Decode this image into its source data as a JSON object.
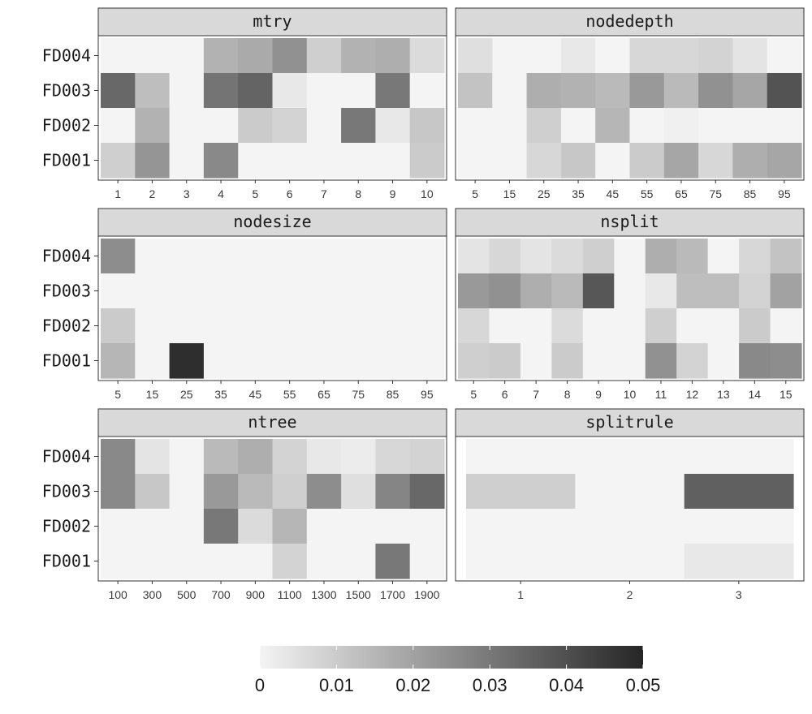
{
  "chart_data": {
    "type": "heatmap",
    "y_categories": [
      "FD001",
      "FD002",
      "FD003",
      "FD004"
    ],
    "fill_scale": {
      "min": 0,
      "max": 0.05,
      "low_color": "#f4f4f4",
      "high_color": "#262626"
    },
    "legend": {
      "ticks": [
        0,
        0.01,
        0.02,
        0.03,
        0.04,
        0.05
      ],
      "tick_labels": [
        "0",
        "0.01",
        "0.02",
        "0.03",
        "0.04",
        "0.05"
      ],
      "position": "bottom"
    },
    "panels": [
      {
        "title": "mtry",
        "x_categories": [
          "1",
          "2",
          "3",
          "4",
          "5",
          "6",
          "7",
          "8",
          "9",
          "10"
        ],
        "values": {
          "FD004": [
            0,
            0,
            0,
            0.016,
            0.018,
            0.024,
            0.009,
            0.016,
            0.017,
            0.006
          ],
          "FD003": [
            0.034,
            0.013,
            0,
            0.031,
            0.035,
            0.003,
            0,
            0,
            0.03,
            0
          ],
          "FD002": [
            0,
            0.016,
            0,
            0,
            0.01,
            0.008,
            0,
            0.03,
            0.003,
            0.011
          ],
          "FD001": [
            0.009,
            0.023,
            0,
            0.026,
            0,
            0,
            0,
            0,
            0,
            0.01
          ]
        }
      },
      {
        "title": "nodedepth",
        "x_categories": [
          "5",
          "15",
          "25",
          "35",
          "45",
          "55",
          "65",
          "75",
          "85",
          "95"
        ],
        "values": {
          "FD004": [
            0.005,
            0,
            0,
            0.003,
            0,
            0.007,
            0.007,
            0.008,
            0.004,
            0
          ],
          "FD003": [
            0.012,
            0,
            0.017,
            0.016,
            0.014,
            0.022,
            0.014,
            0.024,
            0.019,
            0.039
          ],
          "FD002": [
            0,
            0,
            0.009,
            0,
            0.015,
            0,
            0.001,
            0,
            0,
            0
          ],
          "FD001": [
            0,
            0,
            0.007,
            0.011,
            0,
            0.01,
            0.019,
            0.007,
            0.017,
            0.019
          ]
        }
      },
      {
        "title": "nodesize",
        "x_categories": [
          "5",
          "15",
          "25",
          "35",
          "45",
          "55",
          "65",
          "75",
          "85",
          "95"
        ],
        "values": {
          "FD004": [
            0.025,
            0,
            0,
            0,
            0,
            0,
            0,
            0,
            0,
            0
          ],
          "FD003": [
            0,
            0,
            0,
            0,
            0,
            0,
            0,
            0,
            0,
            0
          ],
          "FD002": [
            0.01,
            0,
            0,
            0,
            0,
            0,
            0,
            0,
            0,
            0
          ],
          "FD001": [
            0.015,
            0,
            0.048,
            0,
            0,
            0,
            0,
            0,
            0,
            0
          ]
        }
      },
      {
        "title": "nsplit",
        "x_categories": [
          "5",
          "6",
          "7",
          "8",
          "9",
          "10",
          "11",
          "12",
          "13",
          "14",
          "15"
        ],
        "values": {
          "FD004": [
            0.004,
            0.007,
            0.004,
            0.006,
            0.009,
            0,
            0.017,
            0.014,
            0,
            0.007,
            0.012
          ],
          "FD003": [
            0.022,
            0.024,
            0.017,
            0.014,
            0.038,
            0,
            0.003,
            0.013,
            0.013,
            0.008,
            0.02
          ],
          "FD002": [
            0.007,
            0,
            0,
            0.006,
            0,
            0,
            0.009,
            0,
            0,
            0.01,
            0
          ],
          "FD001": [
            0.009,
            0.01,
            0,
            0.01,
            0,
            0,
            0.024,
            0.008,
            0,
            0.026,
            0.025
          ]
        }
      },
      {
        "title": "ntree",
        "x_categories": [
          "100",
          "300",
          "500",
          "700",
          "900",
          "1100",
          "1300",
          "1500",
          "1700",
          "1900"
        ],
        "values": {
          "FD004": [
            0.026,
            0.004,
            0,
            0.014,
            0.017,
            0.008,
            0.003,
            0.002,
            0.007,
            0.008
          ],
          "FD003": [
            0.026,
            0.011,
            0,
            0.022,
            0.014,
            0.009,
            0.025,
            0.005,
            0.027,
            0.034
          ],
          "FD002": [
            0,
            0,
            0,
            0.03,
            0.006,
            0.015,
            0,
            0,
            0,
            0
          ],
          "FD001": [
            0,
            0,
            0,
            0,
            0,
            0.008,
            0,
            0,
            0.03,
            0
          ]
        }
      },
      {
        "title": "splitrule",
        "x_categories": [
          "1",
          "2",
          "3"
        ],
        "values": {
          "FD004": [
            0,
            0,
            0
          ],
          "FD003": [
            0.009,
            0,
            0.036
          ],
          "FD002": [
            0,
            0,
            0
          ],
          "FD001": [
            0,
            0,
            0.003
          ]
        }
      }
    ]
  }
}
